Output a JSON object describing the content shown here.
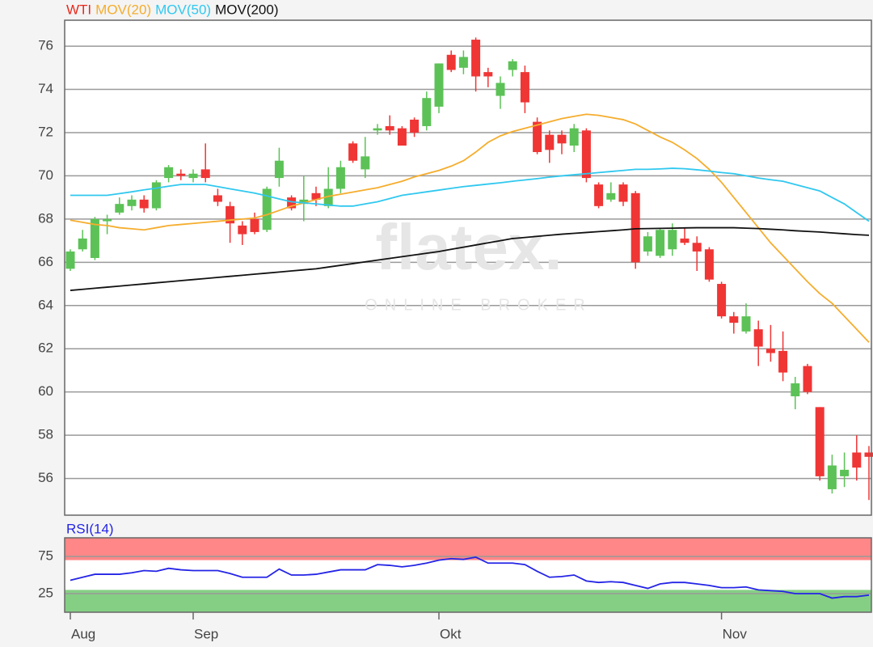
{
  "chart_data": [
    {
      "type": "candlestick",
      "watermark": {
        "logo": "flatex.",
        "tagline": "ONLINE BROKER"
      },
      "categories": [
        "Aug",
        null,
        null,
        null,
        null,
        null,
        null,
        null,
        null,
        null,
        "Sep",
        null,
        null,
        null,
        null,
        null,
        null,
        null,
        null,
        null,
        null,
        null,
        null,
        null,
        null,
        null,
        null,
        null,
        null,
        null,
        "Okt",
        null,
        null,
        null,
        null,
        null,
        null,
        null,
        null,
        null,
        null,
        null,
        null,
        null,
        null,
        null,
        null,
        null,
        null,
        null,
        null,
        null,
        null,
        "Nov",
        null,
        null,
        null,
        null,
        null,
        null,
        null,
        null,
        null,
        null,
        null,
        null
      ],
      "ylim": [
        54.3,
        77.2
      ],
      "yticks": [
        56,
        58,
        60,
        62,
        64,
        66,
        68,
        70,
        72,
        74,
        76
      ],
      "grid": true,
      "series": [
        {
          "name": "WTI",
          "color": "#e8291c",
          "up_color": "#5cc257",
          "down_color": "#f03535",
          "open": [
            65.7,
            66.6,
            66.2,
            67.9,
            68.3,
            68.6,
            68.9,
            68.5,
            69.9,
            70.1,
            69.9,
            70.3,
            69.1,
            68.6,
            67.7,
            68.0,
            67.5,
            69.9,
            69.0,
            68.7,
            69.2,
            68.6,
            69.4,
            71.5,
            70.3,
            72.1,
            72.3,
            72.2,
            72.6,
            72.3,
            73.2,
            75.6,
            75.0,
            76.3,
            74.8,
            73.7,
            74.9,
            74.8,
            72.5,
            71.9,
            71.9,
            71.4,
            72.1,
            69.6,
            68.9,
            69.6,
            69.2,
            66.5,
            66.3,
            66.6,
            67.1,
            66.9,
            66.6,
            65.0,
            63.5,
            62.8,
            62.9,
            62.0,
            61.9,
            59.8,
            61.2,
            59.3,
            55.5,
            56.1,
            57.2,
            57.2
          ],
          "high": [
            66.6,
            67.5,
            68.1,
            68.2,
            69.0,
            69.1,
            69.1,
            69.8,
            70.5,
            70.3,
            70.3,
            71.5,
            69.4,
            68.8,
            67.9,
            68.3,
            69.5,
            71.3,
            69.1,
            70.0,
            69.5,
            70.4,
            70.7,
            71.6,
            71.8,
            72.4,
            72.8,
            72.3,
            72.7,
            73.9,
            75.2,
            75.8,
            75.8,
            76.4,
            75.0,
            74.6,
            75.4,
            75.1,
            72.7,
            72.1,
            72.1,
            72.4,
            72.2,
            69.7,
            69.7,
            69.7,
            69.3,
            67.4,
            67.6,
            67.8,
            67.6,
            67.2,
            66.7,
            65.1,
            63.7,
            64.1,
            63.3,
            63.1,
            62.8,
            60.7,
            61.3,
            59.3,
            57.1,
            57.2,
            58.0,
            57.5
          ],
          "low": [
            65.6,
            66.5,
            66.1,
            67.3,
            68.2,
            68.4,
            68.3,
            68.4,
            69.7,
            69.8,
            69.7,
            69.7,
            68.6,
            66.9,
            66.8,
            67.3,
            67.4,
            69.5,
            68.4,
            67.9,
            68.6,
            68.5,
            69.2,
            70.6,
            69.9,
            71.9,
            71.9,
            71.4,
            71.8,
            72.1,
            72.9,
            74.8,
            74.7,
            73.9,
            74.1,
            73.1,
            74.6,
            72.9,
            71.0,
            70.6,
            71.0,
            71.1,
            69.7,
            68.5,
            68.8,
            68.6,
            65.7,
            66.3,
            66.2,
            66.3,
            66.8,
            65.6,
            65.1,
            63.4,
            62.7,
            62.7,
            61.2,
            61.4,
            60.5,
            59.2,
            59.9,
            55.9,
            55.3,
            55.6,
            55.9,
            55.0
          ],
          "close": [
            66.5,
            67.1,
            68.0,
            68.0,
            68.7,
            68.9,
            68.5,
            69.7,
            70.4,
            70.0,
            70.1,
            69.9,
            68.8,
            67.8,
            67.3,
            67.4,
            69.4,
            70.7,
            68.5,
            68.9,
            68.9,
            69.4,
            70.4,
            70.7,
            70.9,
            72.2,
            72.1,
            71.4,
            72.0,
            73.6,
            75.2,
            74.9,
            75.5,
            74.6,
            74.6,
            74.3,
            75.3,
            73.4,
            71.1,
            71.2,
            71.5,
            72.2,
            69.9,
            68.6,
            69.2,
            68.8,
            66.0,
            67.2,
            67.5,
            67.5,
            66.9,
            66.5,
            65.2,
            63.5,
            63.2,
            63.5,
            62.1,
            61.8,
            60.9,
            60.4,
            60.0,
            56.1,
            56.6,
            56.4,
            56.5,
            57.0
          ]
        },
        {
          "name": "MOV(20)",
          "color": "#f5ad2d",
          "values": [
            67.95,
            67.85,
            67.75,
            67.7,
            67.6,
            67.55,
            67.5,
            67.6,
            67.7,
            67.75,
            67.8,
            67.85,
            67.9,
            67.95,
            68.0,
            68.05,
            68.2,
            68.4,
            68.6,
            68.75,
            68.9,
            69.05,
            69.15,
            69.25,
            69.35,
            69.45,
            69.6,
            69.75,
            69.95,
            70.1,
            70.25,
            70.45,
            70.7,
            71.1,
            71.55,
            71.85,
            72.05,
            72.2,
            72.35,
            72.5,
            72.65,
            72.75,
            72.85,
            72.8,
            72.7,
            72.6,
            72.4,
            72.1,
            71.8,
            71.55,
            71.2,
            70.8,
            70.3,
            69.7,
            69.0,
            68.3,
            67.6,
            66.9,
            66.3,
            65.7,
            65.1,
            64.55,
            64.1,
            63.5,
            62.9,
            62.3
          ]
        },
        {
          "name": "MOV(50)",
          "color": "#30c8ef",
          "values": [
            69.1,
            69.1,
            69.1,
            69.1,
            69.18,
            69.26,
            69.35,
            69.43,
            69.52,
            69.6,
            69.6,
            69.6,
            69.5,
            69.4,
            69.3,
            69.2,
            69.07,
            68.93,
            68.8,
            68.75,
            68.7,
            68.65,
            68.6,
            68.6,
            68.7,
            68.8,
            68.95,
            69.1,
            69.18,
            69.26,
            69.34,
            69.42,
            69.5,
            69.56,
            69.62,
            69.68,
            69.75,
            69.81,
            69.87,
            69.94,
            70.0,
            70.05,
            70.1,
            70.15,
            70.2,
            70.25,
            70.3,
            70.3,
            70.32,
            70.35,
            70.33,
            70.28,
            70.22,
            70.15,
            70.1,
            70.0,
            69.9,
            69.82,
            69.75,
            69.6,
            69.45,
            69.3,
            69.0,
            68.7,
            68.3,
            67.9
          ]
        },
        {
          "name": "MOV(200)",
          "color": "#111111",
          "values": [
            64.7,
            64.75,
            64.8,
            64.85,
            64.9,
            64.95,
            65.0,
            65.05,
            65.1,
            65.15,
            65.2,
            65.25,
            65.3,
            65.35,
            65.4,
            65.45,
            65.5,
            65.55,
            65.6,
            65.65,
            65.7,
            65.78,
            65.86,
            65.94,
            66.02,
            66.1,
            66.18,
            66.26,
            66.34,
            66.42,
            66.5,
            66.6,
            66.7,
            66.8,
            66.9,
            67.0,
            67.1,
            67.15,
            67.2,
            67.25,
            67.3,
            67.34,
            67.38,
            67.42,
            67.46,
            67.5,
            67.55,
            67.56,
            67.57,
            67.58,
            67.59,
            67.6,
            67.6,
            67.6,
            67.6,
            67.58,
            67.56,
            67.53,
            67.5,
            67.46,
            67.43,
            67.4,
            67.36,
            67.32,
            67.28,
            67.25
          ]
        }
      ]
    },
    {
      "type": "line",
      "ylim": [
        0,
        100
      ],
      "yticks": [
        25,
        75
      ],
      "grid": true,
      "zones": [
        {
          "from": 70,
          "to": 100,
          "color": "#ff8787"
        },
        {
          "from": 0,
          "to": 30,
          "color": "#85cf85"
        }
      ],
      "series": [
        {
          "name": "RSI(14)",
          "color": "#2424e6",
          "values": [
            43,
            47,
            51,
            51,
            51,
            53,
            56,
            55,
            59,
            57,
            56,
            56,
            56,
            52,
            47,
            47,
            47,
            58,
            50,
            50,
            51,
            54,
            57,
            57,
            57,
            64,
            63,
            61,
            63,
            66,
            70,
            72,
            71,
            74,
            66,
            66,
            66,
            64,
            55,
            47,
            48,
            50,
            42,
            40,
            41,
            40,
            36,
            32,
            38,
            40,
            40,
            38,
            36,
            33,
            33,
            34,
            30,
            29,
            28,
            25,
            25,
            25,
            19,
            21,
            21,
            23
          ]
        }
      ]
    }
  ]
}
